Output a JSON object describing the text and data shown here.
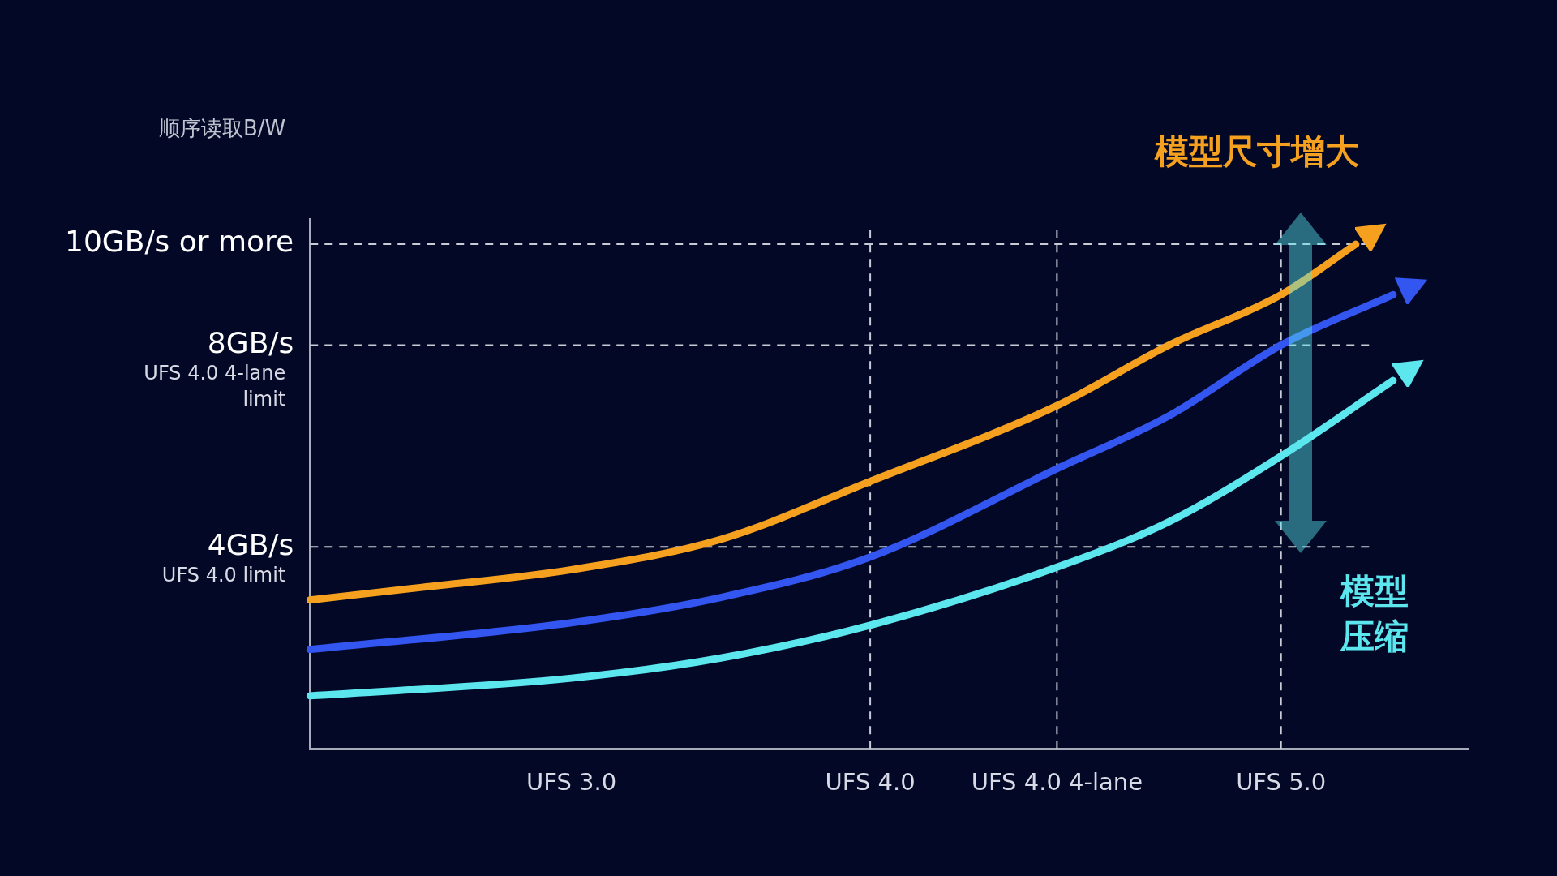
{
  "chart_data": {
    "type": "line",
    "ylabel": "顺序读取B/W",
    "categories": [
      null,
      null,
      null,
      null,
      null,
      null,
      null,
      "UFS 3.0",
      null,
      null,
      null,
      null,
      null,
      null,
      null,
      "UFS 4.0",
      null,
      null,
      null,
      null,
      "UFS 4.0 4-lane",
      null,
      null,
      null,
      null,
      null,
      "UFS 5.0",
      null,
      null,
      null,
      null,
      null
    ],
    "series": [
      {
        "color": "#f5a01e",
        "values": [
          2.95,
          null,
          null,
          3.2,
          null,
          null,
          null,
          3.55,
          null,
          null,
          null,
          4.15,
          null,
          null,
          null,
          5.3,
          null,
          null,
          null,
          null,
          6.8,
          null,
          null,
          8.0,
          null,
          null,
          9.0,
          null,
          10.0,
          null,
          null,
          null
        ]
      },
      {
        "color": "#3355f0",
        "values": [
          1.97,
          null,
          null,
          null,
          null,
          null,
          null,
          2.5,
          null,
          null,
          null,
          3.0,
          null,
          null,
          null,
          3.8,
          null,
          null,
          null,
          null,
          5.55,
          null,
          null,
          6.6,
          null,
          null,
          8.0,
          null,
          null,
          9.0,
          null,
          null
        ]
      },
      {
        "color": "#5ce6ee",
        "values": [
          1.05,
          null,
          null,
          null,
          null,
          null,
          null,
          1.4,
          null,
          null,
          null,
          1.8,
          null,
          null,
          null,
          2.45,
          null,
          null,
          null,
          null,
          3.6,
          null,
          null,
          4.5,
          null,
          null,
          5.8,
          null,
          null,
          7.3,
          null,
          null
        ]
      }
    ],
    "ylim": [
      0,
      10.5
    ],
    "yticks": [
      {
        "value": 4,
        "label": "4GB/s"
      },
      {
        "value": 8,
        "label": "8GB/s"
      },
      {
        "value": 10,
        "label": "10GB/s or more"
      }
    ],
    "ref_lines": [
      {
        "axis": "y",
        "value": 4,
        "label": "UFS 4.0 limit",
        "line_style": "dashed"
      },
      {
        "axis": "y",
        "value": 8,
        "label": "UFS 4.0 4-lane limit",
        "line_style": "dashed"
      },
      {
        "axis": "y",
        "value": 10,
        "line_style": "dashed"
      },
      {
        "axis": "x",
        "value": "UFS 4.0",
        "line_style": "dashed"
      },
      {
        "axis": "x",
        "value": "UFS 4.0 4-lane",
        "line_style": "dashed"
      },
      {
        "axis": "x",
        "value": "UFS 5.0",
        "line_style": "dashed"
      }
    ],
    "annotations": [
      "模型尺寸增大",
      "模型压缩"
    ],
    "grid": false,
    "legend": false,
    "marker": "none",
    "line_style": "solid"
  }
}
